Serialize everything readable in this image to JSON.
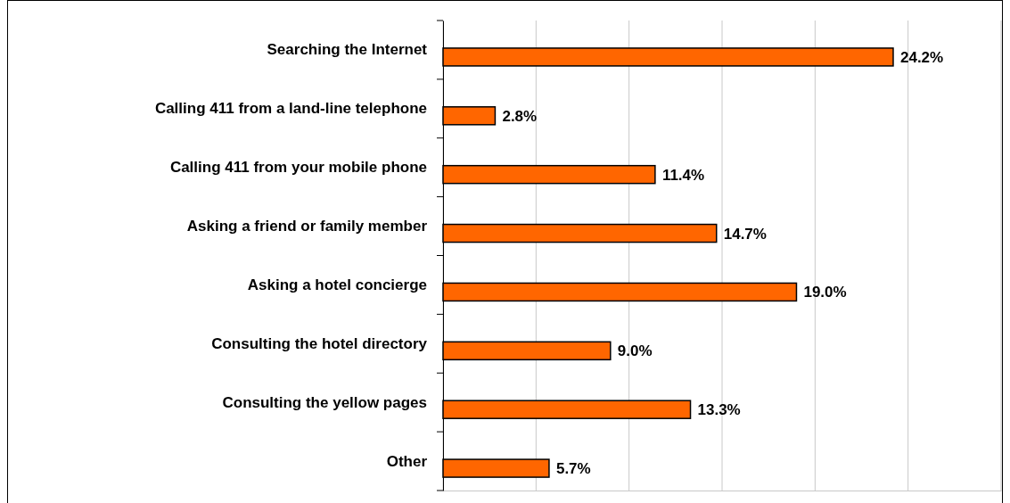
{
  "chart_data": {
    "type": "bar",
    "orientation": "horizontal",
    "categories": [
      "Searching the Internet",
      "Calling 411 from a land-line telephone",
      "Calling 411 from your mobile phone",
      "Asking a friend or family member",
      "Asking a hotel concierge",
      "Consulting the hotel directory",
      "Consulting the yellow pages",
      "Other"
    ],
    "values": [
      24.2,
      2.8,
      11.4,
      14.7,
      19.0,
      9.0,
      13.3,
      5.7
    ],
    "value_labels": [
      "24.2%",
      "2.8%",
      "11.4%",
      "14.7%",
      "19.0%",
      "9.0%",
      "13.3%",
      "5.7%"
    ],
    "color": "#ff6600",
    "xlim": [
      0,
      30
    ],
    "xticks": [
      {
        "value": 0,
        "label": null
      },
      {
        "value": 5,
        "label": null
      },
      {
        "value": 10,
        "label": null
      },
      {
        "value": 15,
        "label": null
      },
      {
        "value": 20,
        "label": null
      },
      {
        "value": 25,
        "label": null
      },
      {
        "value": 30,
        "label": null
      }
    ],
    "tick_labels": "y",
    "grid": "x"
  }
}
